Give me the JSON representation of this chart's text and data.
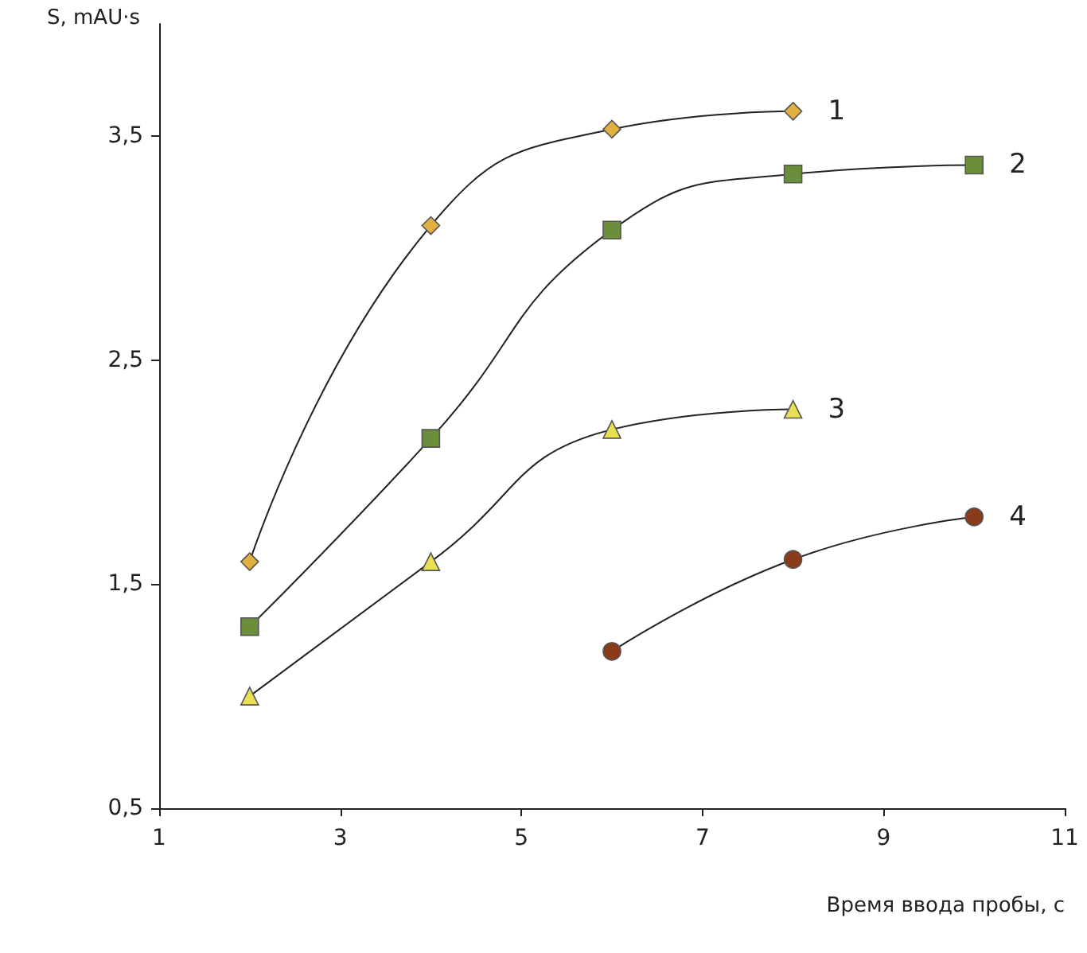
{
  "chart_data": {
    "type": "line",
    "xlabel": "Время ввода пробы, с",
    "ylabel": "S, mAU·s",
    "xlim": [
      1,
      11
    ],
    "xticks": [
      1,
      3,
      5,
      7,
      9,
      11
    ],
    "ylim": [
      0.5,
      4.0
    ],
    "yticks": [
      {
        "value": 0.5,
        "label": "0,5"
      },
      {
        "value": 1.5,
        "label": "1,5"
      },
      {
        "value": 2.5,
        "label": "2,5"
      },
      {
        "value": 3.5,
        "label": "3,5"
      }
    ],
    "grid": false,
    "legend": false,
    "line_style": "solid",
    "series": [
      {
        "name": "1",
        "color": "#e0b040",
        "marker": "diamond",
        "x": [
          2,
          4,
          6,
          8
        ],
        "values": [
          1.6,
          3.1,
          3.53,
          3.61
        ]
      },
      {
        "name": "2",
        "color": "#6b8e3a",
        "marker": "square",
        "x": [
          2,
          4,
          6,
          8,
          10
        ],
        "values": [
          1.31,
          2.15,
          3.08,
          3.33,
          3.37
        ]
      },
      {
        "name": "3",
        "color": "#e8e050",
        "marker": "triangle",
        "x": [
          2,
          4,
          6,
          8
        ],
        "values": [
          1.0,
          1.6,
          2.19,
          2.28
        ]
      },
      {
        "name": "4",
        "color": "#8b3a1a",
        "marker": "circle",
        "x": [
          6,
          8,
          10
        ],
        "values": [
          1.2,
          1.61,
          1.8
        ]
      }
    ]
  }
}
